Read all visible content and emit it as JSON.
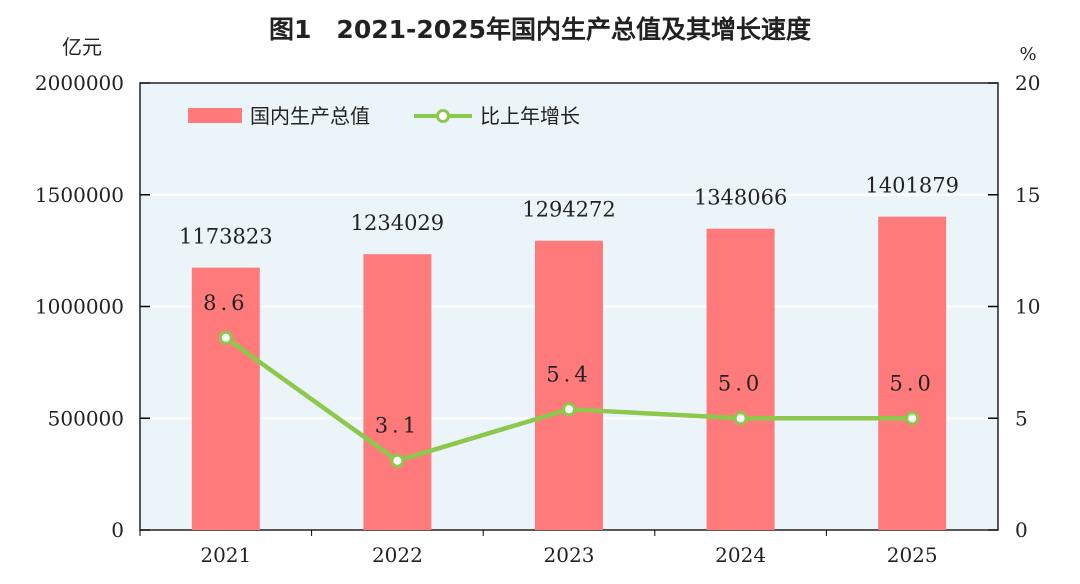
{
  "chart_data": {
    "type": "bar+line",
    "title": "图1　2021-2025年国内生产总值及其增长速度",
    "ylabel_left": "亿元",
    "ylabel_right": "%",
    "categories": [
      "2021",
      "2022",
      "2023",
      "2024",
      "2025"
    ],
    "series": [
      {
        "name": "国内生产总值",
        "type": "bar",
        "axis": "left",
        "color": "#FF7B7B",
        "values": [
          1173823,
          1234029,
          1294272,
          1348066,
          1401879
        ],
        "labels": [
          "1173823",
          "1234029",
          "1294272",
          "1348066",
          "1401879"
        ]
      },
      {
        "name": "比上年增长",
        "type": "line",
        "axis": "right",
        "color": "#8CC84B",
        "values": [
          8.6,
          3.1,
          5.4,
          5.0,
          5.0
        ],
        "labels": [
          "8.6",
          "3.1",
          "5.4",
          "5.0",
          "5.0"
        ]
      }
    ],
    "ylim_left": [
      0,
      2000000
    ],
    "yticks_left": [
      "0",
      "500000",
      "1000000",
      "1500000",
      "2000000"
    ],
    "ylim_right": [
      0,
      20
    ],
    "yticks_right": [
      "0",
      "5",
      "10",
      "15",
      "20"
    ],
    "grid": true,
    "legend_position": "top-left",
    "background_color": "#EBF5F9"
  }
}
